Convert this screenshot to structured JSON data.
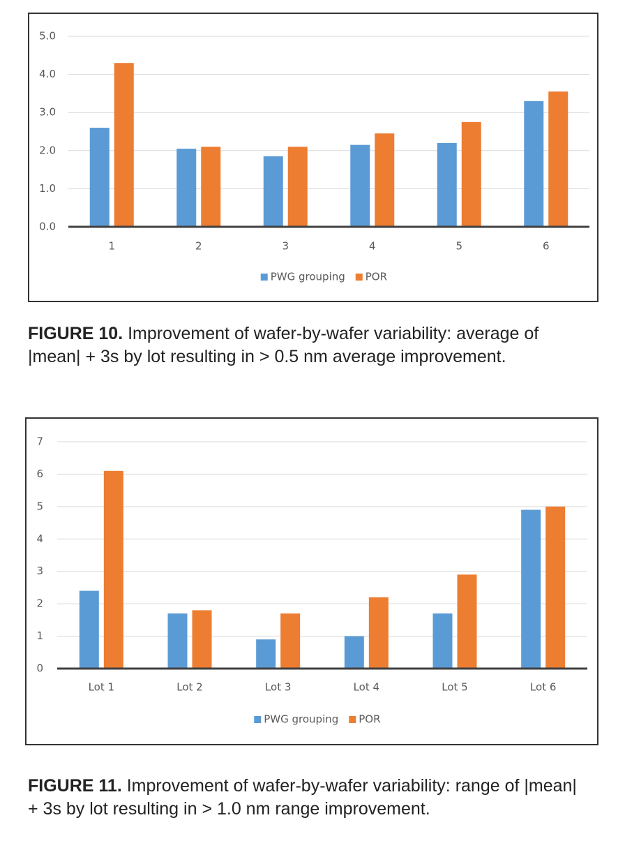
{
  "chart_data": [
    {
      "type": "bar",
      "categories": [
        "1",
        "2",
        "3",
        "4",
        "5",
        "6"
      ],
      "series": [
        {
          "name": "PWG grouping",
          "color": "#5b9bd5",
          "values": [
            2.6,
            2.05,
            1.85,
            2.15,
            2.2,
            3.3
          ]
        },
        {
          "name": "POR",
          "color": "#ed7d31",
          "values": [
            4.3,
            2.1,
            2.1,
            2.45,
            2.75,
            3.55
          ]
        }
      ],
      "ylim": [
        0,
        5
      ],
      "yticks": [
        {
          "value": 0,
          "label": "0.0"
        },
        {
          "value": 1,
          "label": "1.0"
        },
        {
          "value": 2,
          "label": "2.0"
        },
        {
          "value": 3,
          "label": "3.0"
        },
        {
          "value": 4,
          "label": "4.0"
        },
        {
          "value": 5,
          "label": "5.0"
        }
      ],
      "grid": true,
      "legend": "bottom"
    },
    {
      "type": "bar",
      "categories": [
        "Lot 1",
        "Lot 2",
        "Lot 3",
        "Lot 4",
        "Lot 5",
        "Lot 6"
      ],
      "series": [
        {
          "name": "PWG grouping",
          "color": "#5b9bd5",
          "values": [
            2.4,
            1.7,
            0.9,
            1.0,
            1.7,
            4.9
          ]
        },
        {
          "name": "POR",
          "color": "#ed7d31",
          "values": [
            6.1,
            1.8,
            1.7,
            2.2,
            2.9,
            5.0
          ]
        }
      ],
      "ylim": [
        0,
        7
      ],
      "yticks": [
        0,
        1,
        2,
        3,
        4,
        5,
        6,
        7
      ],
      "grid": true,
      "legend": "bottom"
    }
  ],
  "figures": [
    {
      "label": "FIGURE 10.",
      "text": "Improvement of wafer-by-wafer variability: average of |mean| + 3s by lot resulting in > 0.5 nm average improvement."
    },
    {
      "label": "FIGURE 11.",
      "text": "Improvement of wafer-by-wafer variability: range of |mean| + 3s by lot resulting in > 1.0 nm range improvement."
    }
  ]
}
